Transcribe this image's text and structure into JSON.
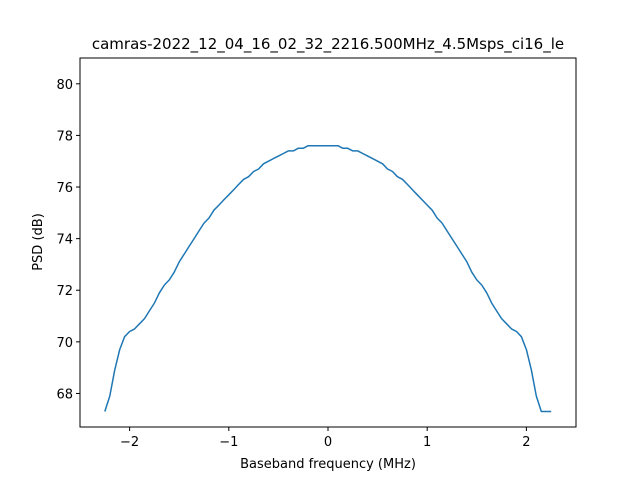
{
  "chart_data": {
    "type": "line",
    "title": "camras-2022_12_04_16_02_32_2216.500MHz_4.5Msps_ci16_le",
    "xlabel": "Baseband frequency (MHz)",
    "ylabel": "PSD (dB)",
    "xlim": [
      -2.5,
      2.5
    ],
    "ylim": [
      66.7,
      81.0
    ],
    "xticks": [
      -2,
      -1,
      0,
      1,
      2
    ],
    "xtick_labels": [
      "−2",
      "−1",
      "0",
      "1",
      "2"
    ],
    "yticks": [
      68,
      70,
      72,
      74,
      76,
      78,
      80
    ],
    "ytick_labels": [
      "68",
      "70",
      "72",
      "74",
      "76",
      "78",
      "80"
    ],
    "grid": false,
    "color": "#1f77b4",
    "series": [
      {
        "x": [
          -2.25,
          -2.2,
          -2.15,
          -2.1,
          -2.05,
          -2.0,
          -1.95,
          -1.9,
          -1.85,
          -1.8,
          -1.75,
          -1.7,
          -1.65,
          -1.6,
          -1.55,
          -1.5,
          -1.45,
          -1.4,
          -1.35,
          -1.3,
          -1.25,
          -1.2,
          -1.15,
          -1.1,
          -1.05,
          -1.0,
          -0.95,
          -0.9,
          -0.85,
          -0.8,
          -0.75,
          -0.7,
          -0.65,
          -0.6,
          -0.55,
          -0.5,
          -0.45,
          -0.4,
          -0.35,
          -0.3,
          -0.25,
          -0.2,
          -0.15,
          -0.1,
          -0.05,
          0.0,
          0.05,
          0.1,
          0.15,
          0.2,
          0.25,
          0.3,
          0.35,
          0.4,
          0.45,
          0.5,
          0.55,
          0.6,
          0.65,
          0.7,
          0.75,
          0.8,
          0.85,
          0.9,
          0.95,
          1.0,
          1.05,
          1.1,
          1.15,
          1.2,
          1.25,
          1.3,
          1.35,
          1.4,
          1.45,
          1.5,
          1.55,
          1.6,
          1.65,
          1.7,
          1.75,
          1.8,
          1.85,
          1.9,
          1.95,
          2.0,
          2.05,
          2.1,
          2.15,
          2.2,
          2.25
        ],
        "y": [
          67.3,
          67.9,
          68.9,
          69.7,
          70.2,
          70.4,
          70.5,
          70.7,
          70.9,
          71.2,
          71.5,
          71.9,
          72.2,
          72.4,
          72.7,
          73.1,
          73.4,
          73.7,
          74.0,
          74.3,
          74.6,
          74.8,
          75.1,
          75.3,
          75.5,
          75.7,
          75.9,
          76.1,
          76.3,
          76.4,
          76.6,
          76.7,
          76.9,
          77.0,
          77.1,
          77.2,
          77.3,
          77.4,
          77.4,
          77.5,
          77.5,
          77.6,
          77.6,
          77.6,
          77.6,
          77.6,
          77.6,
          77.6,
          77.5,
          77.5,
          77.4,
          77.4,
          77.3,
          77.2,
          77.1,
          77.0,
          76.9,
          76.7,
          76.6,
          76.4,
          76.3,
          76.1,
          75.9,
          75.7,
          75.5,
          75.3,
          75.1,
          74.8,
          74.6,
          74.3,
          74.0,
          73.7,
          73.4,
          73.1,
          72.7,
          72.4,
          72.2,
          71.9,
          71.5,
          71.2,
          70.9,
          70.7,
          70.5,
          70.4,
          70.2,
          69.7,
          68.9,
          67.9,
          67.3,
          67.3,
          67.3
        ]
      }
    ]
  }
}
